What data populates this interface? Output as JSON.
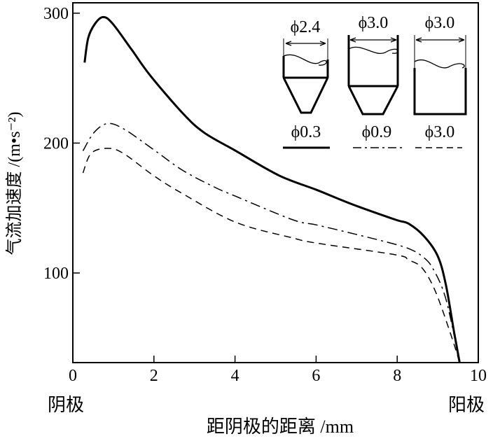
{
  "chart_data": {
    "type": "line",
    "title": "",
    "xlabel": "距阴极的距离 /mm",
    "ylabel": "气流加速度 /(m•s⁻²)",
    "x_end_labels": {
      "left": "阴极",
      "right": "阳极"
    },
    "xlim": [
      0,
      10
    ],
    "ylim": [
      31,
      308
    ],
    "xticks": [
      0,
      2,
      4,
      6,
      8,
      10
    ],
    "yticks": [
      100,
      200,
      300
    ],
    "grid": false,
    "legend_placement": "top-right",
    "series": [
      {
        "name": "ϕ0.3",
        "style": "solid-thick",
        "vessel": {
          "top_label": "ϕ2.4",
          "shape": "long-cone"
        },
        "points": [
          [
            0.29,
            262
          ],
          [
            0.38,
            281
          ],
          [
            0.55,
            292
          ],
          [
            0.75,
            297
          ],
          [
            0.98,
            292
          ],
          [
            1.45,
            272
          ],
          [
            1.91,
            252
          ],
          [
            2.71,
            223
          ],
          [
            3.24,
            208
          ],
          [
            4.02,
            194
          ],
          [
            5.09,
            175
          ],
          [
            6.01,
            164
          ],
          [
            6.88,
            153
          ],
          [
            7.96,
            141
          ],
          [
            8.28,
            138
          ],
          [
            8.67,
            128
          ],
          [
            9.0,
            113
          ],
          [
            9.2,
            91
          ],
          [
            9.4,
            55
          ],
          [
            9.54,
            31
          ]
        ]
      },
      {
        "name": "ϕ0.9",
        "style": "dash-dot",
        "vessel": {
          "top_label": "ϕ3.0",
          "shape": "short-cone"
        },
        "points": [
          [
            0.25,
            194
          ],
          [
            0.52,
            208
          ],
          [
            0.85,
            215
          ],
          [
            1.25,
            211
          ],
          [
            1.99,
            195
          ],
          [
            2.71,
            179
          ],
          [
            3.5,
            166
          ],
          [
            4.02,
            159
          ],
          [
            5.42,
            141
          ],
          [
            6.01,
            137
          ],
          [
            6.95,
            130
          ],
          [
            7.96,
            122
          ],
          [
            8.34,
            118
          ],
          [
            8.61,
            113
          ],
          [
            8.87,
            104
          ],
          [
            9.2,
            80
          ],
          [
            9.54,
            31
          ]
        ]
      },
      {
        "name": "ϕ3.0",
        "style": "dashed",
        "vessel": {
          "top_label": "ϕ3.0",
          "shape": "cylinder"
        },
        "points": [
          [
            0.25,
            177
          ],
          [
            0.45,
            192
          ],
          [
            0.85,
            196
          ],
          [
            1.25,
            192
          ],
          [
            1.99,
            175
          ],
          [
            2.71,
            161
          ],
          [
            4.02,
            139
          ],
          [
            5.42,
            127
          ],
          [
            6.01,
            123
          ],
          [
            7.96,
            114
          ],
          [
            8.28,
            110
          ],
          [
            8.61,
            104
          ],
          [
            8.94,
            86
          ],
          [
            9.34,
            51
          ],
          [
            9.54,
            31
          ]
        ]
      }
    ]
  }
}
